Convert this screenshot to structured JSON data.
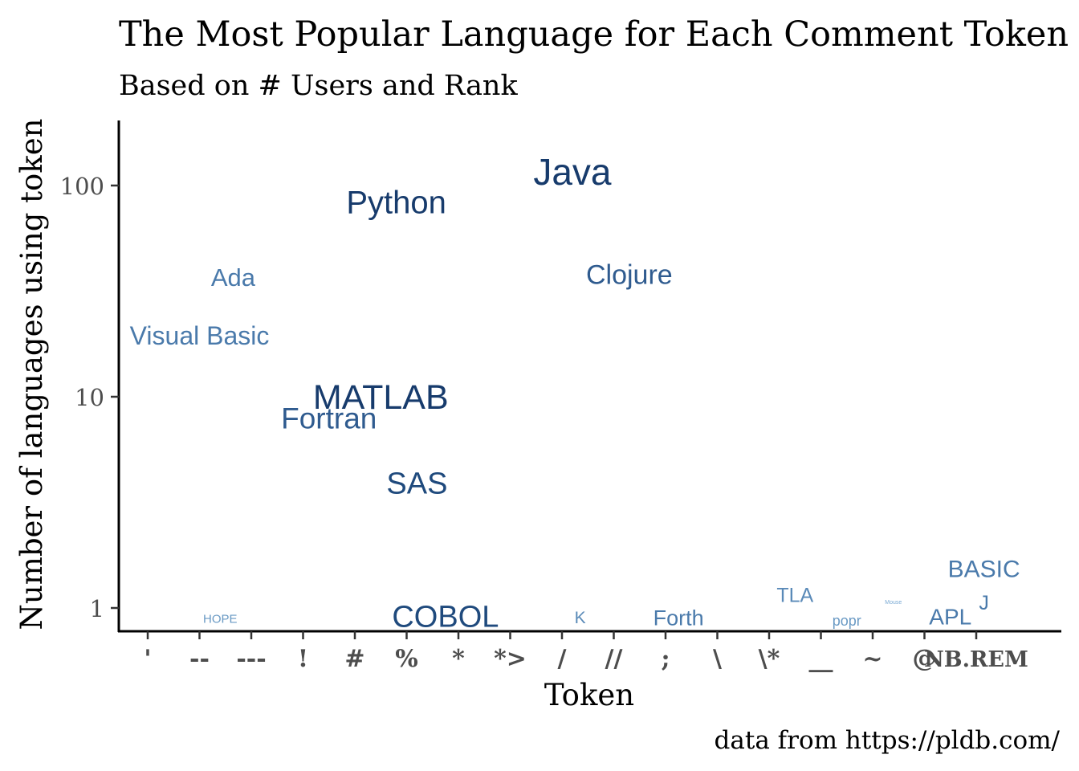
{
  "chart_data": {
    "type": "scatter",
    "title": "The Most Popular Language for Each Comment Token",
    "subtitle": "Based on # Users and Rank",
    "xlabel": "Token",
    "ylabel": "Number of languages using token",
    "caption": "data from https://pldb.com/",
    "y_scale": "log10",
    "ylim": [
      0.8,
      200
    ],
    "y_ticks": [
      {
        "value": 1,
        "label": "1"
      },
      {
        "value": 10,
        "label": "10"
      },
      {
        "value": 100,
        "label": "100"
      }
    ],
    "categories": [
      "'",
      "--",
      "---",
      "!",
      "#",
      "%",
      "*",
      "*>",
      "/",
      "//",
      ";",
      "\\",
      "\\*",
      "__",
      "~",
      "@",
      "NB.REM"
    ],
    "points": [
      {
        "label": "Visual Basic",
        "token": "'",
        "dx": 1.0,
        "y": 19,
        "size": 32,
        "color": "#4a7aab"
      },
      {
        "label": "Ada",
        "token": "--",
        "dx": 0.65,
        "y": 36,
        "size": 31,
        "color": "#4a7aab"
      },
      {
        "label": "HOPE",
        "token": "--",
        "dx": 0.4,
        "y": 0.88,
        "size": 15,
        "color": "#6a9ac4"
      },
      {
        "label": "Fortran",
        "token": "!",
        "dx": 0.5,
        "y": 7.7,
        "size": 37,
        "color": "#2f5b8f"
      },
      {
        "label": "Python",
        "token": "#",
        "dx": 0.8,
        "y": 81,
        "size": 40,
        "color": "#173b6c"
      },
      {
        "label": "MATLAB",
        "token": "%",
        "dx": -0.5,
        "y": 9.7,
        "size": 43,
        "color": "#173b6c"
      },
      {
        "label": "SAS",
        "token": "%",
        "dx": 0.2,
        "y": 3.8,
        "size": 38,
        "color": "#1f4a7d"
      },
      {
        "label": "COBOL",
        "token": "*>",
        "dx": -1.25,
        "y": 0.89,
        "size": 38,
        "color": "#1f4a7d"
      },
      {
        "label": "Java",
        "token": "//",
        "dx": -0.8,
        "y": 112,
        "size": 46,
        "color": "#173b6c"
      },
      {
        "label": "Clojure",
        "token": ";",
        "dx": -0.7,
        "y": 37,
        "size": 34,
        "color": "#2f5b8f"
      },
      {
        "label": "K",
        "token": "/",
        "dx": 0.35,
        "y": 0.89,
        "size": 21,
        "color": "#5a8ab8"
      },
      {
        "label": "Forth",
        "token": "\\",
        "dx": -0.75,
        "y": 0.88,
        "size": 27,
        "color": "#4a7aab"
      },
      {
        "label": "TLA",
        "token": "\\*",
        "dx": 0.5,
        "y": 1.13,
        "size": 25,
        "color": "#5a8ab8"
      },
      {
        "label": "popr",
        "token": "__",
        "dx": 0.5,
        "y": 0.86,
        "size": 18,
        "color": "#6a9ac4"
      },
      {
        "label": "Mouse",
        "token": "~",
        "dx": 0.4,
        "y": 1.06,
        "size": 7,
        "color": "#7aaad4"
      },
      {
        "label": "APL",
        "token": "@",
        "dx": 0.5,
        "y": 0.89,
        "size": 28,
        "color": "#4a7aab"
      },
      {
        "label": "BASIC",
        "token": "NB.REM",
        "dx": 0.15,
        "y": 1.5,
        "size": 30,
        "color": "#4a7aab"
      },
      {
        "label": "J",
        "token": "NB.REM",
        "dx": 0.15,
        "y": 1.04,
        "size": 25,
        "color": "#4a7aab"
      }
    ],
    "grid": false,
    "legend": "none"
  }
}
